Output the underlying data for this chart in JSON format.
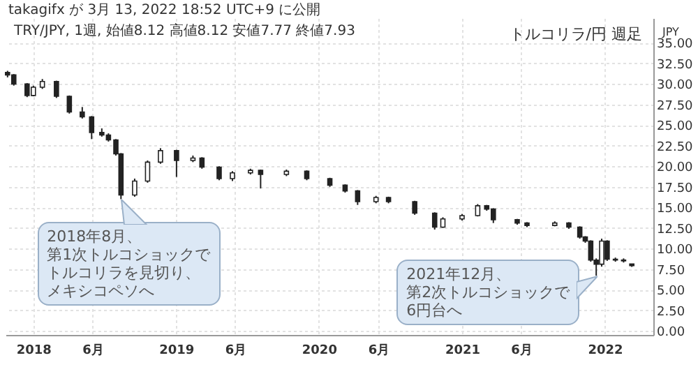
{
  "chart_data": {
    "type": "candlestick",
    "title": "トルコリラ/円 週足",
    "subtitle": "TRY/JPY, 1週, 始値8.12 高値8.12 安値7.77 終値7.93",
    "ylabel": "JPY",
    "annotations": [
      "takagifx が 3月 13, 2022 18:52 UTC+9 に公開",
      {
        "text": "2018年8月、第1次トルコショックでトルコリラを見切り、メキシコペソへ",
        "x": "2018-08-13",
        "y": 16.0
      },
      {
        "text": "2021年12月、第2次トルコショックで6円台へ",
        "x": "2021-12-10",
        "y": 6.7
      }
    ],
    "x": [
      "2017-10-27",
      "2017-11-12",
      "2017-12-16",
      "2018-01-01",
      "2018-01-24",
      "2018-03-01",
      "2018-04-03",
      "2018-05-06",
      "2018-05-30",
      "2018-06-25",
      "2018-07-12",
      "2018-07-31",
      "2018-08-13",
      "2018-09-17",
      "2018-10-20",
      "2018-11-22",
      "2019-01-02",
      "2019-02-13",
      "2019-03-08",
      "2019-04-21",
      "2019-05-25",
      "2019-07-10",
      "2019-08-05",
      "2019-10-10",
      "2019-12-01",
      "2020-01-29",
      "2020-03-08",
      "2020-04-09",
      "2020-05-26",
      "2020-06-27",
      "2020-09-02",
      "2020-10-23",
      "2020-11-13",
      "2021-01-01",
      "2021-02-10",
      "2021-03-05",
      "2021-03-22",
      "2021-05-22",
      "2021-06-16",
      "2021-08-26",
      "2021-10-01",
      "2021-10-29",
      "2021-11-12",
      "2021-11-26",
      "2021-12-10",
      "2021-12-24",
      "2022-01-07",
      "2022-01-28",
      "2022-02-18",
      "2022-03-11"
    ],
    "ohlc": [
      [
        31.4,
        31.6,
        30.8,
        31.1
      ],
      [
        31.1,
        31.2,
        29.8,
        30.0
      ],
      [
        30.0,
        30.1,
        28.4,
        28.6
      ],
      [
        28.6,
        29.8,
        28.5,
        29.6
      ],
      [
        29.6,
        30.6,
        29.4,
        30.3
      ],
      [
        30.3,
        30.4,
        28.3,
        28.5
      ],
      [
        28.5,
        28.6,
        26.4,
        26.6
      ],
      [
        26.6,
        27.2,
        25.8,
        26.0
      ],
      [
        26.0,
        26.1,
        23.3,
        24.1
      ],
      [
        24.1,
        24.6,
        23.6,
        23.8
      ],
      [
        23.8,
        24.0,
        23.0,
        23.2
      ],
      [
        23.2,
        23.3,
        21.3,
        21.5
      ],
      [
        21.5,
        21.6,
        16.0,
        16.5
      ],
      [
        16.5,
        18.5,
        16.3,
        18.2
      ],
      [
        18.2,
        20.7,
        18.0,
        20.5
      ],
      [
        20.5,
        22.2,
        20.3,
        21.9
      ],
      [
        21.9,
        22.0,
        18.7,
        20.7
      ],
      [
        20.7,
        21.3,
        20.5,
        21.0
      ],
      [
        21.0,
        21.1,
        19.7,
        19.9
      ],
      [
        19.9,
        20.0,
        18.3,
        18.5
      ],
      [
        18.5,
        19.4,
        18.2,
        19.2
      ],
      [
        19.2,
        19.7,
        19.0,
        19.5
      ],
      [
        19.5,
        19.6,
        17.3,
        19.0
      ],
      [
        19.0,
        19.6,
        18.8,
        19.4
      ],
      [
        19.4,
        19.5,
        18.3,
        18.5
      ],
      [
        18.5,
        18.6,
        17.5,
        17.7
      ],
      [
        17.7,
        17.8,
        16.8,
        17.0
      ],
      [
        17.0,
        17.1,
        15.3,
        15.7
      ],
      [
        15.7,
        16.4,
        15.5,
        16.2
      ],
      [
        16.2,
        16.3,
        15.5,
        15.7
      ],
      [
        15.7,
        15.8,
        14.1,
        14.3
      ],
      [
        14.3,
        14.4,
        12.3,
        12.6
      ],
      [
        12.6,
        13.8,
        12.5,
        13.6
      ],
      [
        13.6,
        14.2,
        13.4,
        14.0
      ],
      [
        14.0,
        15.4,
        13.9,
        15.2
      ],
      [
        15.2,
        15.3,
        14.6,
        14.8
      ],
      [
        14.8,
        14.9,
        13.1,
        13.5
      ],
      [
        13.5,
        13.6,
        12.9,
        13.1
      ],
      [
        13.1,
        13.2,
        12.6,
        12.8
      ],
      [
        12.8,
        13.3,
        12.7,
        13.1
      ],
      [
        13.1,
        13.2,
        12.4,
        12.6
      ],
      [
        12.6,
        12.7,
        11.2,
        11.4
      ],
      [
        11.4,
        11.5,
        10.7,
        10.9
      ],
      [
        10.9,
        11.0,
        8.4,
        8.6
      ],
      [
        8.6,
        8.8,
        6.7,
        8.1
      ],
      [
        8.1,
        11.2,
        7.8,
        10.9
      ],
      [
        10.9,
        11.0,
        8.5,
        8.7
      ],
      [
        8.7,
        8.9,
        8.4,
        8.6
      ],
      [
        8.6,
        8.8,
        8.3,
        8.5
      ],
      [
        8.12,
        8.12,
        7.77,
        7.93
      ]
    ],
    "color": "#222222",
    "xlim": [
      "2017-10-22",
      "2022-05-05"
    ],
    "xticks": [
      {
        "value": "2018-01-01",
        "label": "2018"
      },
      {
        "value": "2018-06-01",
        "label": "6月"
      },
      {
        "value": "2019-01-01",
        "label": "2019"
      },
      {
        "value": "2019-06-01",
        "label": "6月"
      },
      {
        "value": "2020-01-01",
        "label": "2020"
      },
      {
        "value": "2020-06-01",
        "label": "6月"
      },
      {
        "value": "2021-01-01",
        "label": "2021"
      },
      {
        "value": "2021-06-01",
        "label": "6月"
      },
      {
        "value": "2022-01-01",
        "label": "2022"
      }
    ],
    "ylim": [
      -0.5,
      38
    ],
    "yticks": [
      {
        "value": 0,
        "label": "0.00"
      },
      {
        "value": 2.5,
        "label": "2.50"
      },
      {
        "value": 5,
        "label": "5.00"
      },
      {
        "value": 7.5,
        "label": "7.50"
      },
      {
        "value": 10,
        "label": "10.00"
      },
      {
        "value": 12.5,
        "label": "12.50"
      },
      {
        "value": 15,
        "label": "15.00"
      },
      {
        "value": 17.5,
        "label": "17.50"
      },
      {
        "value": 20,
        "label": "20.00"
      },
      {
        "value": 22.5,
        "label": "22.50"
      },
      {
        "value": 25,
        "label": "25.00"
      },
      {
        "value": 27.5,
        "label": "27.50"
      },
      {
        "value": 30,
        "label": "30.00"
      },
      {
        "value": 32.5,
        "label": "32.50"
      },
      {
        "value": 35,
        "label": "35.00"
      }
    ],
    "grid": true
  }
}
